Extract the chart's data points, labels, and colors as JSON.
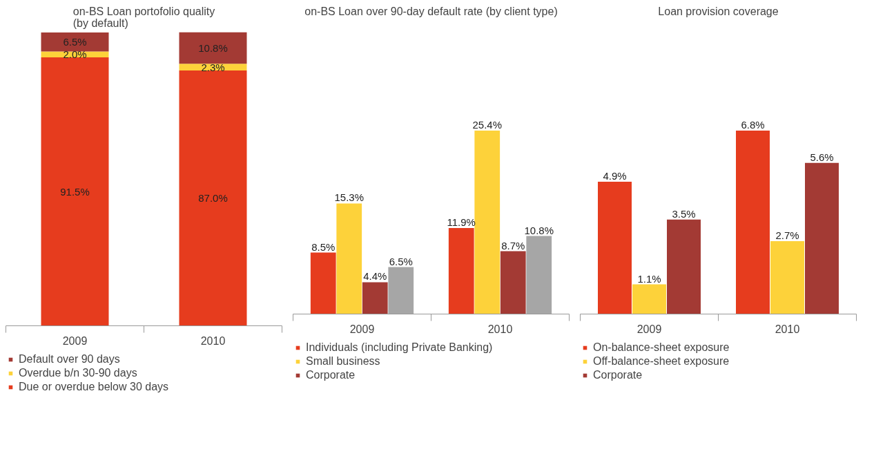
{
  "chart_data": [
    {
      "type": "bar",
      "title": "on-BS Loan portofolio quality\n(by default)",
      "categories": [
        "2009",
        "2010"
      ],
      "stacked": true,
      "tick_labels": "x",
      "grid": false,
      "legend": "bottom",
      "series": [
        {
          "name": "Due or overdue below 30 days",
          "color": "#e63c1e",
          "values": [
            91.5,
            87.0
          ],
          "value_labels": [
            "91.5%",
            "87.0%"
          ]
        },
        {
          "name": "Overdue b/n 30-90 days",
          "color": "#fdd23a",
          "values": [
            2.0,
            2.3
          ],
          "value_labels": [
            "2.0%",
            "2.3%"
          ]
        },
        {
          "name": "Default over 90 days",
          "color": "#a33a34",
          "values": [
            6.5,
            10.8
          ],
          "value_labels": [
            "6.5%",
            "10.8%"
          ]
        }
      ]
    },
    {
      "type": "bar",
      "title": "on-BS Loan over 90-day default rate (by client type)",
      "categories": [
        "2009",
        "2010"
      ],
      "tick_labels": "x",
      "grid": false,
      "legend": "bottom",
      "series": [
        {
          "name": "Individuals (including Private Banking)",
          "color": "#e63c1e",
          "values": [
            8.5,
            11.9
          ],
          "value_labels": [
            "8.5%",
            "11.9%"
          ]
        },
        {
          "name": "Small business",
          "color": "#fdd23a",
          "values": [
            15.3,
            25.4
          ],
          "value_labels": [
            "15.3%",
            "25.4%"
          ]
        },
        {
          "name": "Corporate",
          "color": "#a33a34",
          "values": [
            4.4,
            8.7
          ],
          "value_labels": [
            "4.4%",
            "8.7%"
          ]
        },
        {
          "color": "#a6a6a6",
          "values": [
            6.5,
            10.8
          ],
          "value_labels": [
            "6.5%",
            "10.8%"
          ]
        }
      ]
    },
    {
      "type": "bar",
      "title": "Loan provision coverage",
      "categories": [
        "2009",
        "2010"
      ],
      "tick_labels": "x",
      "grid": false,
      "legend": "bottom",
      "series": [
        {
          "name": "On-balance-sheet exposure",
          "color": "#e63c1e",
          "values": [
            4.9,
            6.8
          ],
          "value_labels": [
            "4.9%",
            "6.8%"
          ]
        },
        {
          "name": "Off-balance-sheet exposure",
          "color": "#fdd23a",
          "values": [
            1.1,
            2.7
          ],
          "value_labels": [
            "1.1%",
            "2.7%"
          ]
        },
        {
          "name": "Corporate",
          "color": "#a33a34",
          "values": [
            3.5,
            5.6
          ],
          "value_labels": [
            "3.5%",
            "5.6%"
          ]
        }
      ]
    }
  ]
}
